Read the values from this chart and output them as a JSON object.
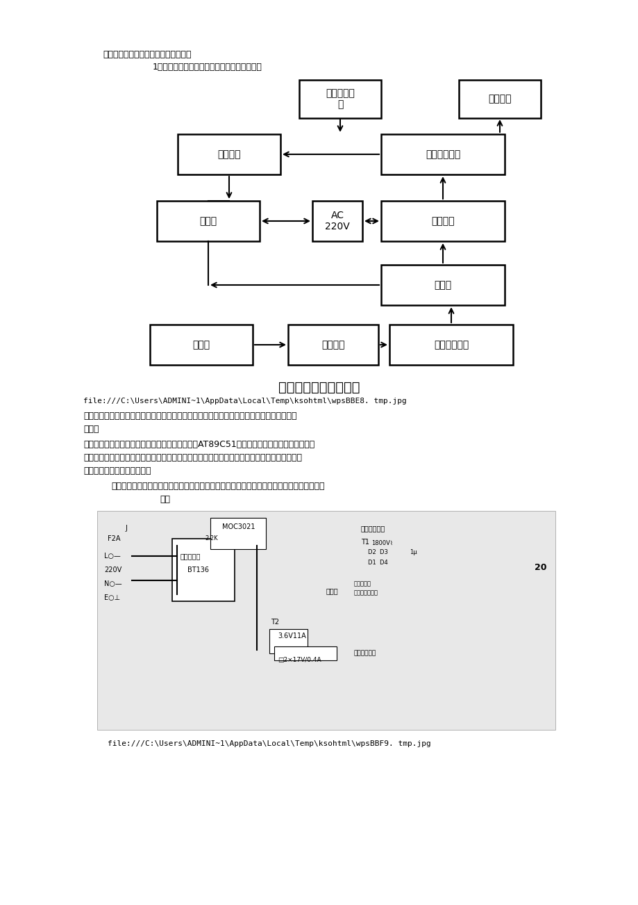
{
  "title_line1": "、微波治疗仪的结构原理及维护与维修",
  "title_line2": "1、微波治疗仪的结构及部分主要器件原理说明",
  "diagram_title": "微波治疗仪的基本结构",
  "file_path1": "file:///C:\\Users\\ADMINI~1\\AppData\\Local\\Temp\\ksohtml\\wpsBBE8. tmp.jpg",
  "file_path2": "file:///C:\\Users\\ADMINI~1\\AppData\\Local\\Temp\\ksohtml\\wpsBBF9. tmp.jpg",
  "para1_line1": "　　从以上结构上我们看出，微波机主要由电源、输入输出控制电路、磁控管等三大核心部分",
  "para1_line2": "组成。",
  "para2_line1": "　　控制电路一般由单片机芯片组成，较多是用的AT89C51。实现时间、功率控制和参数显示",
  "para2_line2": "功能，控制磁控管的微波发射及发射功率、治疗时间、病人患部治疗微波功率和温度的采集处理",
  "para2_line3": "以及保护和故障报警指示功能",
  "para3_line1": "　　电源电路的功能是：提供磁控管的灯丝工作电源、磁控管的阳极高压电源和制系统所需的",
  "para3_line2": "电。",
  "bg_color": "#ffffff"
}
